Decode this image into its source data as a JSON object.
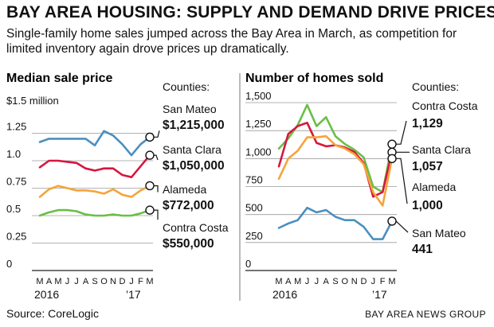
{
  "headline": "BAY AREA HOUSING: SUPPLY AND DEMAND DRIVE PRICES",
  "subhead": "Single-family home sales jumped across the Bay Area in March, as competition for limited inventory again drove prices up dramatically.",
  "source": "Source: CoreLogic",
  "credit": "BAY AREA NEWS GROUP",
  "chart_data": [
    {
      "type": "line",
      "title": "Median sale price",
      "ylabel": "$1.5 million",
      "ylim": [
        0,
        1.5
      ],
      "yticks": [
        "1.25",
        "1.0",
        "0.75",
        "0.5",
        "0.25",
        "0"
      ],
      "x": [
        "M",
        "A",
        "M",
        "J",
        "J",
        "A",
        "S",
        "O",
        "N",
        "D",
        "J",
        "F",
        "M"
      ],
      "year_labels": [
        "2016",
        "’17"
      ],
      "legend_title": "Counties:",
      "series": [
        {
          "name": "San Mateo",
          "value_label": "$1,215,000",
          "color": "#4a8fc0",
          "values": [
            1.17,
            1.2,
            1.2,
            1.2,
            1.2,
            1.2,
            1.14,
            1.27,
            1.23,
            1.15,
            1.05,
            1.15,
            1.215
          ]
        },
        {
          "name": "Santa Clara",
          "value_label": "$1,050,000",
          "color": "#d6173f",
          "values": [
            0.94,
            1.0,
            1.0,
            0.99,
            0.98,
            0.93,
            0.91,
            0.93,
            0.93,
            0.87,
            0.85,
            0.95,
            1.05
          ]
        },
        {
          "name": "Alameda",
          "value_label": "$772,000",
          "color": "#f5a43a",
          "values": [
            0.67,
            0.74,
            0.77,
            0.75,
            0.73,
            0.73,
            0.72,
            0.7,
            0.74,
            0.69,
            0.67,
            0.73,
            0.772
          ]
        },
        {
          "name": "Contra Costa",
          "value_label": "$550,000",
          "color": "#6abf45",
          "values": [
            0.5,
            0.53,
            0.55,
            0.55,
            0.54,
            0.51,
            0.5,
            0.5,
            0.51,
            0.5,
            0.5,
            0.52,
            0.55
          ]
        }
      ]
    },
    {
      "type": "line",
      "title": "Number of homes sold",
      "ylim": [
        0,
        1500
      ],
      "yticks": [
        "1,500",
        "1,250",
        "1,000",
        "750",
        "500",
        "250",
        "0"
      ],
      "x": [
        "M",
        "A",
        "M",
        "J",
        "J",
        "A",
        "S",
        "O",
        "N",
        "D",
        "J",
        "F",
        "M"
      ],
      "year_labels": [
        "2016",
        "’17"
      ],
      "legend_title": "Counties:",
      "series": [
        {
          "name": "Contra Costa",
          "value_label": "1,129",
          "color": "#6abf45",
          "values": [
            1090,
            1180,
            1300,
            1480,
            1290,
            1370,
            1200,
            1130,
            1080,
            1010,
            750,
            700,
            1129
          ]
        },
        {
          "name": "Santa Clara",
          "value_label": "1,057",
          "color": "#d6173f",
          "values": [
            930,
            1220,
            1290,
            1320,
            1140,
            1110,
            1120,
            1100,
            1060,
            960,
            660,
            700,
            1057
          ]
        },
        {
          "name": "Alameda",
          "value_label": "1,000",
          "color": "#f5a43a",
          "values": [
            820,
            1000,
            1070,
            1190,
            1190,
            1200,
            1120,
            1090,
            1040,
            950,
            700,
            580,
            1000
          ]
        },
        {
          "name": "San Mateo",
          "value_label": "441",
          "color": "#4a8fc0",
          "values": [
            380,
            420,
            450,
            560,
            520,
            540,
            480,
            450,
            450,
            390,
            280,
            280,
            441
          ]
        }
      ]
    }
  ]
}
